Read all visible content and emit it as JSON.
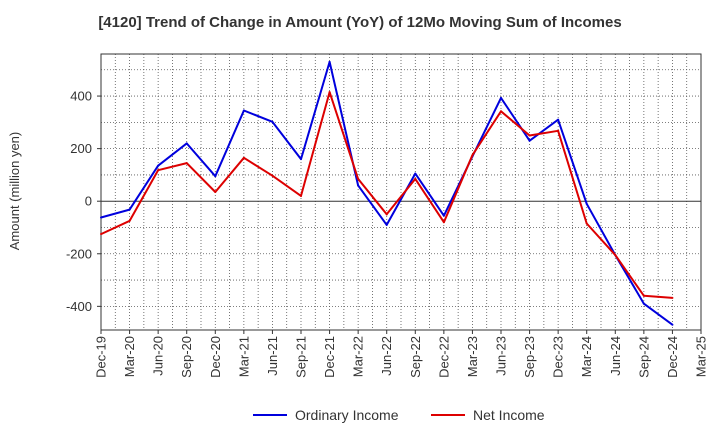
{
  "chart_data": {
    "type": "line",
    "title": "[4120]  Trend of Change in Amount (YoY) of 12Mo Moving Sum of Incomes",
    "xlabel": "",
    "ylabel": "Amount (million yen)",
    "ylim": [
      -490,
      560
    ],
    "yticks": [
      -400,
      -200,
      0,
      200,
      400
    ],
    "grid": true,
    "legend_position": "bottom-center",
    "x": [
      "Dec-19",
      "Mar-20",
      "Jun-20",
      "Sep-20",
      "Dec-20",
      "Mar-21",
      "Jun-21",
      "Sep-21",
      "Dec-21",
      "Mar-22",
      "Jun-22",
      "Sep-22",
      "Dec-22",
      "Mar-23",
      "Jun-23",
      "Sep-23",
      "Dec-23",
      "Mar-24",
      "Jun-24",
      "Sep-24",
      "Dec-24",
      "Mar-25"
    ],
    "series": [
      {
        "name": "Ordinary Income",
        "color": "#0000dd",
        "values": [
          -62,
          -32,
          135,
          220,
          95,
          345,
          302,
          160,
          530,
          60,
          -90,
          105,
          -55,
          170,
          393,
          230,
          310,
          -10,
          -205,
          -390,
          -470,
          null
        ]
      },
      {
        "name": "Net Income",
        "color": "#dd0000",
        "values": [
          -125,
          -75,
          118,
          145,
          35,
          165,
          97,
          20,
          415,
          85,
          -50,
          85,
          -80,
          175,
          342,
          250,
          268,
          -85,
          -205,
          -360,
          -368,
          null
        ]
      }
    ]
  }
}
